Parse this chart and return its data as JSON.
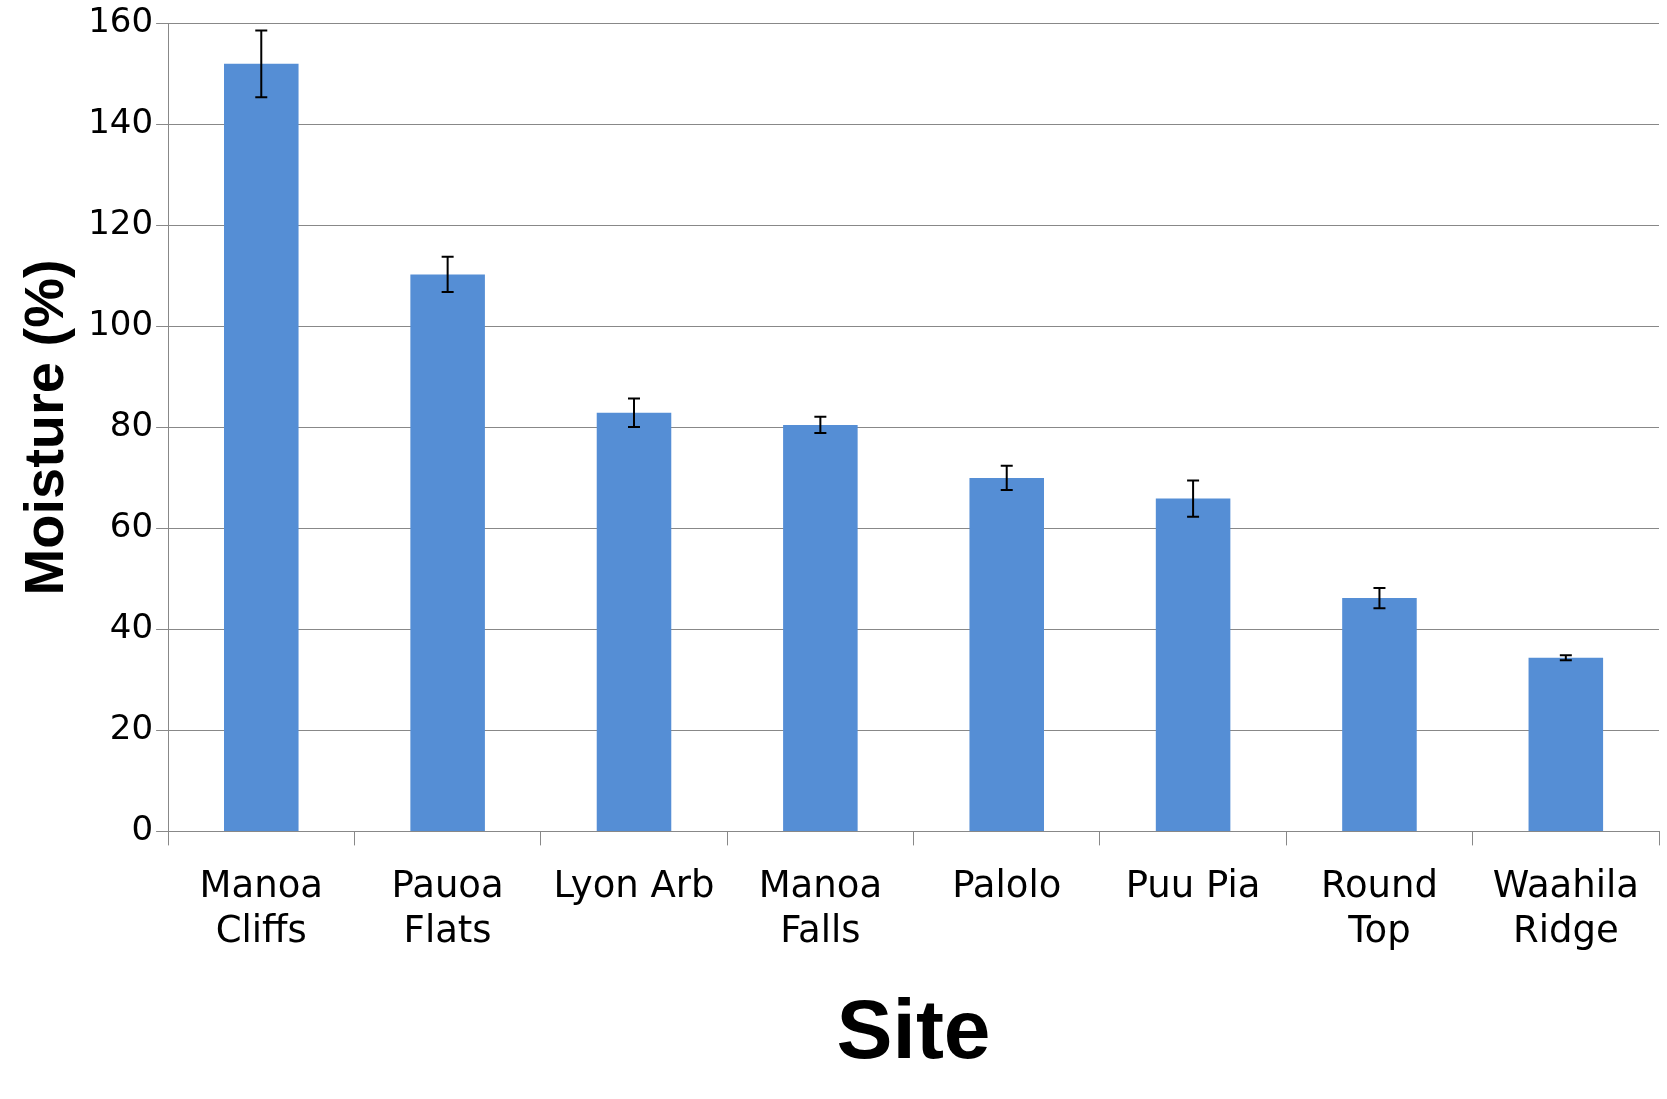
{
  "chart_data": {
    "type": "bar",
    "xlabel": "Site",
    "ylabel": "Moisture (%)",
    "categories": [
      [
        "Manoa",
        "Cliffs"
      ],
      [
        "Pauoa",
        "Flats"
      ],
      "Lyon Arb",
      [
        "Manoa",
        "Falls"
      ],
      "Palolo",
      "Puu Pia",
      [
        "Round",
        "Top"
      ],
      [
        "Waahila",
        "Ridge"
      ]
    ],
    "values": [
      152,
      110.3,
      82.9,
      80.5,
      70,
      65.9,
      46.2,
      34.4
    ],
    "errors": [
      6.6,
      3.5,
      2.8,
      1.6,
      2.4,
      3.6,
      2,
      0.5
    ],
    "color": "#558ed5",
    "ylim": [
      0,
      160
    ],
    "yticks": [
      0,
      20,
      40,
      60,
      80,
      100,
      120,
      140,
      160
    ],
    "grid": "y",
    "legend": false
  }
}
